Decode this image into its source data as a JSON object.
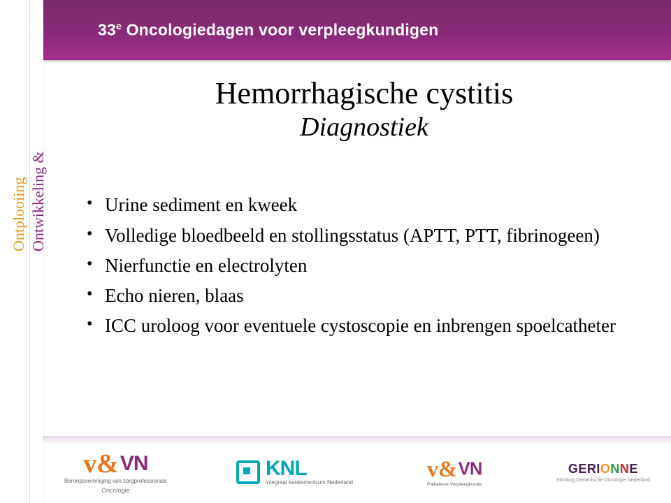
{
  "header": {
    "number": "33",
    "ord": "e",
    "title_rest": " Oncologiedagen voor verpleegkundigen"
  },
  "rail": {
    "text1": "Ontplooiing",
    "text2": "Ontwikkeling &",
    "color1": "#e59a1f",
    "color2": "#8a2a7a"
  },
  "slide": {
    "title": "Hemorrhagische cystitis",
    "subtitle": "Diagnostiek",
    "bullets": [
      "Urine sediment en kweek",
      "Volledige bloedbeeld en stollingsstatus (APTT, PTT, fibrinogeen)",
      "Nierfunctie en electrolyten",
      "Echo nieren, blaas",
      "ICC uroloog voor eventuele cystoscopie en inbrengen spoelcatheter"
    ]
  },
  "logos": {
    "vvn": {
      "amp": "v&",
      "name": "VN",
      "sub": "Beroepsvereniging van zorgprofessionals",
      "cat": "Oncologie"
    },
    "knl": {
      "name": "KNL",
      "side": "integraal kankercentrum Nederland"
    },
    "vvn2": {
      "amp": "v&",
      "name": "VN",
      "sub": "Palliatieve Verpleegkunde"
    },
    "ger": {
      "name_plain": "GERI",
      "o": "O",
      "n1": "N",
      "n2": "N",
      "tail": "E",
      "sub": "Stichting Geriatrische Oncologie Nederland"
    }
  },
  "colors": {
    "purple": "#8a2a7a",
    "orange": "#e5781f",
    "teal": "#00a7b5"
  }
}
